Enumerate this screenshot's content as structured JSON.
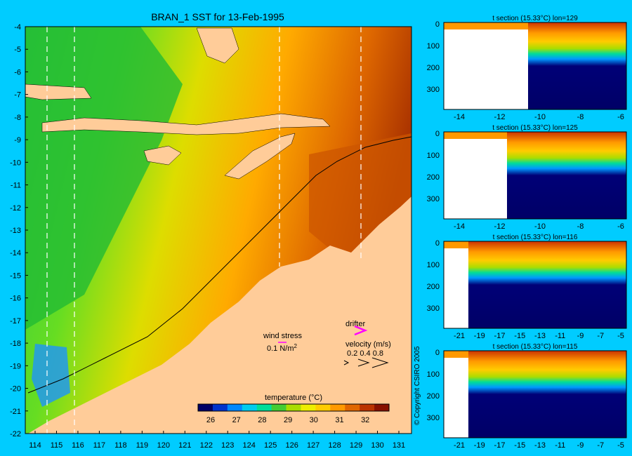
{
  "map": {
    "title": "BRAN_1 SST for 13-Feb-1995",
    "lat_ticks": [
      "-4",
      "-5",
      "-6",
      "-7",
      "-8",
      "-9",
      "-10",
      "-11",
      "-12",
      "-13",
      "-14",
      "-15",
      "-16",
      "-17",
      "-18",
      "-19",
      "-20",
      "-21",
      "-22"
    ],
    "lon_ticks": [
      "114",
      "115",
      "116",
      "117",
      "118",
      "119",
      "120",
      "121",
      "122",
      "123",
      "124",
      "125",
      "126",
      "127",
      "128",
      "129",
      "130",
      "131"
    ],
    "colorbar": {
      "title": "temperature (°C)",
      "ticks": [
        "26",
        "27",
        "28",
        "29",
        "30",
        "31",
        "32"
      ],
      "colors": [
        "#000066",
        "#0033cc",
        "#0088ff",
        "#00ccee",
        "#00dd99",
        "#44cc33",
        "#aadd00",
        "#eeee00",
        "#ffcc00",
        "#ff9900",
        "#e06600",
        "#bb3300",
        "#881100"
      ]
    },
    "legend": {
      "wind_label": "wind stress",
      "wind_scale": "0.1 N/m",
      "wind_scale_sup": "2",
      "drifter_label": "drifter",
      "velocity_label": "velocity (m/s)",
      "velocity_values": "0.2 0.4 0.8"
    },
    "colors": {
      "background": "#00ccff",
      "land": "#ffcc99",
      "drifter": "#ff00ff",
      "section_line": "#ffffff"
    }
  },
  "sections": [
    {
      "title": "t section (15.33°C) lon=129",
      "x_ticks": [
        "-14",
        "-12",
        "-10",
        "-8",
        "-6"
      ],
      "y_ticks": [
        "0",
        "100",
        "200",
        "300"
      ]
    },
    {
      "title": "t section (15.33°C) lon=125",
      "x_ticks": [
        "-14",
        "-12",
        "-10",
        "-8",
        "-6"
      ],
      "y_ticks": [
        "0",
        "100",
        "200",
        "300"
      ]
    },
    {
      "title": "t section (15.33°C) lon=116",
      "x_ticks": [
        "-21",
        "-19",
        "-17",
        "-15",
        "-13",
        "-11",
        "-9",
        "-7",
        "-5"
      ],
      "y_ticks": [
        "0",
        "100",
        "200",
        "300"
      ]
    },
    {
      "title": "t section (15.33°C) lon=115",
      "x_ticks": [
        "-21",
        "-19",
        "-17",
        "-15",
        "-13",
        "-11",
        "-9",
        "-7",
        "-5"
      ],
      "y_ticks": [
        "0",
        "100",
        "200",
        "300"
      ]
    }
  ],
  "copyright": "© Copyright CSIRO 2005"
}
